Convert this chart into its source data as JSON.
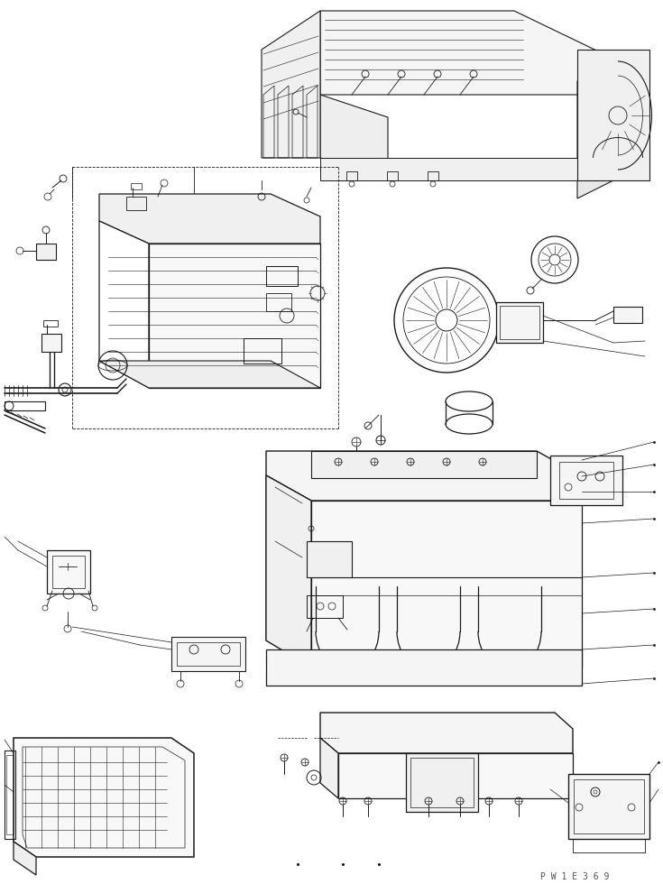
{
  "bg_color": "#ffffff",
  "line_color": "#1a1a1a",
  "lw_main": 0.7,
  "lw_thin": 0.4,
  "lw_thick": 1.0,
  "watermark": "P W 1 E 3 6 9",
  "fig_width": 7.35,
  "fig_height": 9.8,
  "dpi": 100
}
